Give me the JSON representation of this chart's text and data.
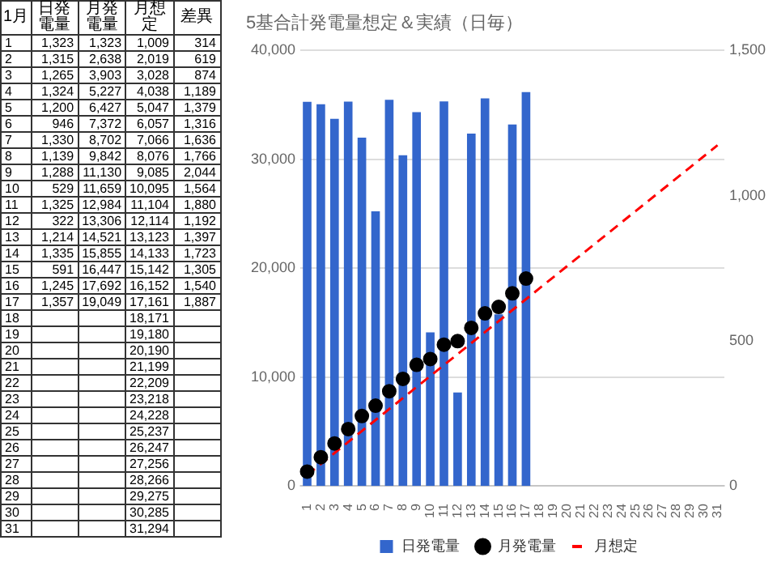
{
  "chart_data": {
    "type": "bar",
    "title": "5基合計発電量想定＆実績（日毎）",
    "categories": [
      "1",
      "2",
      "3",
      "4",
      "5",
      "6",
      "7",
      "8",
      "9",
      "10",
      "11",
      "12",
      "13",
      "14",
      "15",
      "16",
      "17",
      "18",
      "19",
      "20",
      "21",
      "22",
      "23",
      "24",
      "25",
      "26",
      "27",
      "28",
      "29",
      "30",
      "31"
    ],
    "series": [
      {
        "name": "日発電量",
        "type": "bar",
        "axis": "y2",
        "color": "#3366cc",
        "values": [
          1323,
          1315,
          1265,
          1324,
          1200,
          946,
          1330,
          1139,
          1288,
          529,
          1325,
          322,
          1214,
          1335,
          591,
          1245,
          1357,
          null,
          null,
          null,
          null,
          null,
          null,
          null,
          null,
          null,
          null,
          null,
          null,
          null,
          null
        ]
      },
      {
        "name": "月発電量",
        "type": "scatter",
        "marker": "circle",
        "color": "#000000",
        "values": [
          1323,
          2638,
          3903,
          5227,
          6427,
          7372,
          8702,
          9842,
          11130,
          11659,
          12984,
          13306,
          14521,
          15855,
          16447,
          17692,
          19049,
          null,
          null,
          null,
          null,
          null,
          null,
          null,
          null,
          null,
          null,
          null,
          null,
          null,
          null
        ]
      },
      {
        "name": "月想定",
        "type": "line",
        "line_style": "dashed",
        "color": "#ff0000",
        "values": [
          1009,
          2019,
          3028,
          4038,
          5047,
          6057,
          7066,
          8076,
          9085,
          10095,
          11104,
          12114,
          13123,
          14133,
          15142,
          16152,
          17161,
          18171,
          19180,
          20190,
          21199,
          22209,
          23218,
          24228,
          25237,
          26247,
          27256,
          28266,
          29275,
          30285,
          31294
        ]
      }
    ],
    "ylim": [
      0,
      40000
    ],
    "yticks": [
      0,
      {
        "value": 10000,
        "label": "10,000"
      },
      {
        "value": 20000,
        "label": "20,000"
      },
      {
        "value": 30000,
        "label": "30,000"
      },
      {
        "value": 40000,
        "label": "40,000"
      }
    ],
    "y2lim": [
      0,
      1500
    ],
    "y2ticks": [
      0,
      500,
      {
        "value": 1000,
        "label": "1,000"
      },
      {
        "value": 1500,
        "label": "1,500"
      }
    ],
    "grid": "y",
    "legend": "bottom",
    "annotations": [
      "1月",
      "日発電量",
      "月発電量",
      "月想定",
      "差異",
      "1\t1,323\t1,323\t1,009\t314",
      "2\t1,315\t2,638\t2,019\t619",
      "3\t1,265\t3,903\t3,028\t874",
      "4\t1,324\t5,227\t4,038\t1,189",
      "5\t1,200\t6,427\t5,047\t1,379",
      "6\t946\t7,372\t6,057\t1,316",
      "7\t1,330\t8,702\t7,066\t1,636",
      "8\t1,139\t9,842\t8,076\t1,766",
      "9\t1,288\t11,130\t9,085\t2,044",
      "10\t529\t11,659\t10,095\t1,564",
      "11\t1,325\t12,984\t11,104\t1,880",
      "12\t322\t13,306\t12,114\t1,192",
      "13\t1,214\t14,521\t13,123\t1,397",
      "14\t1,335\t15,855\t14,133\t1,723",
      "15\t591\t16,447\t15,142\t1,305",
      "16\t1,245\t17,692\t16,152\t1,540",
      "17\t1,357\t19,049\t17,161\t1,887",
      "18\t\t\t18,171\t",
      "19\t\t\t19,180\t",
      "20\t\t\t20,190\t",
      "21\t\t\t21,199\t",
      "22\t\t\t22,209\t",
      "23\t\t\t23,218\t",
      "24\t\t\t24,228\t",
      "25\t\t\t25,237\t",
      "26\t\t\t26,247\t",
      "27\t\t\t27,256\t",
      "28\t\t\t28,266\t",
      "29\t\t\t29,275\t",
      "30\t\t\t30,285\t",
      "31\t\t\t31,294\t"
    ]
  }
}
